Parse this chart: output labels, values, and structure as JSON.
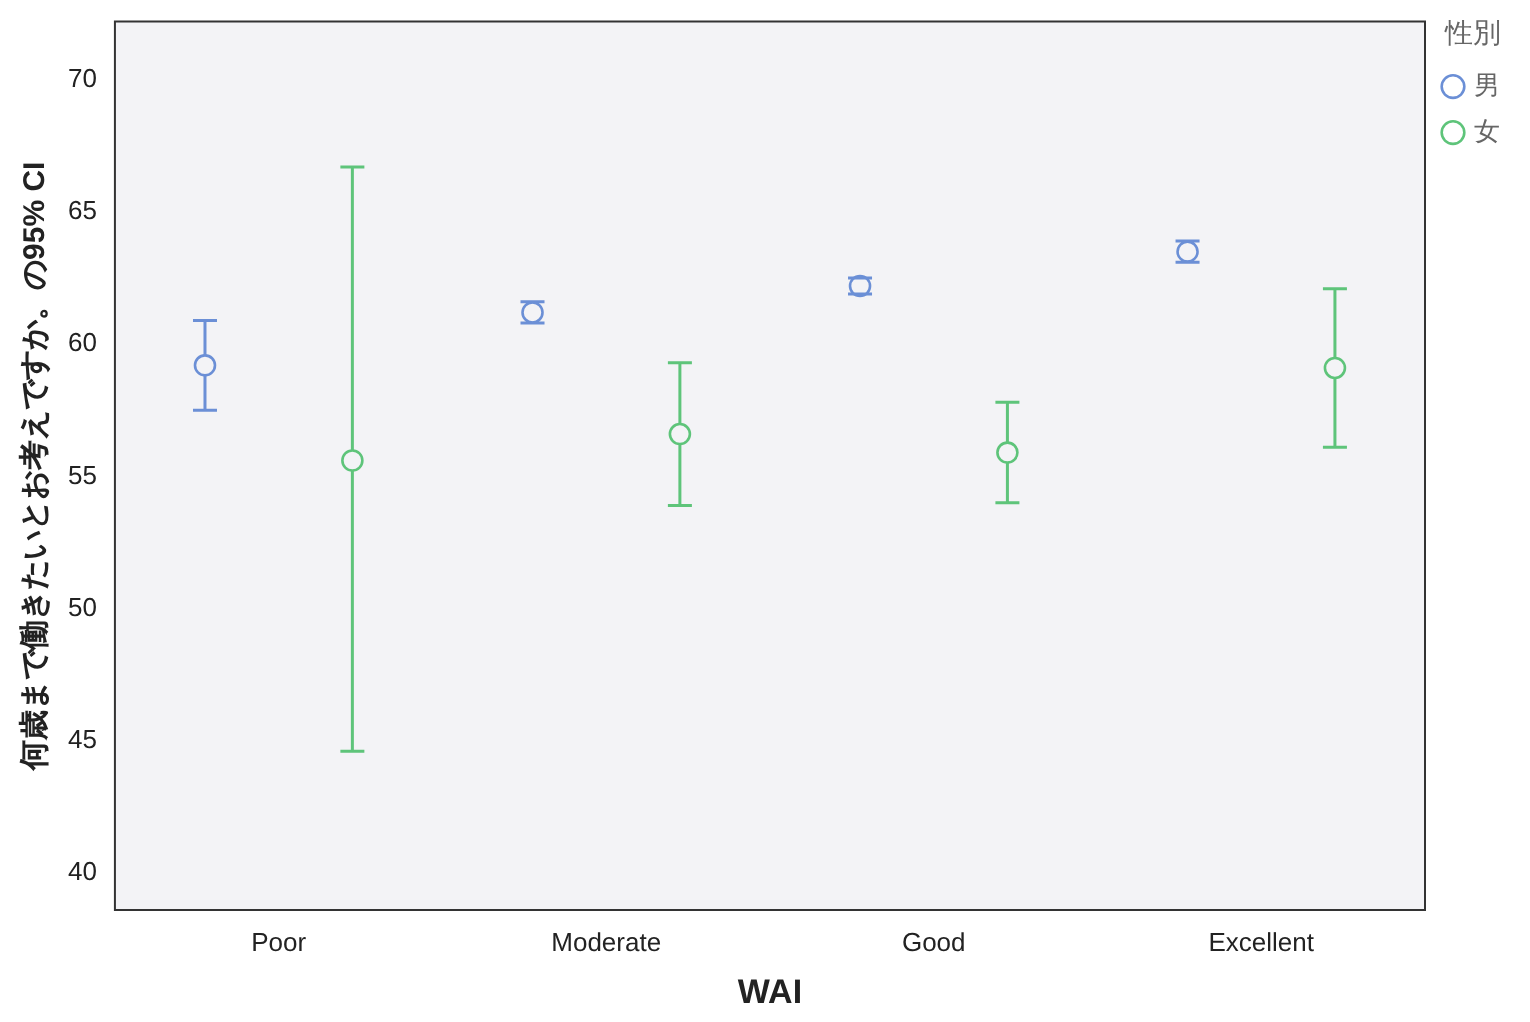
{
  "chart_data": {
    "type": "scatter",
    "xlabel": "WAI",
    "ylabel": "何歳まで働きたいとお考えですか。の95% CI",
    "legend_title": "性別",
    "categories": [
      "Poor",
      "Moderate",
      "Good",
      "Excellent"
    ],
    "series": [
      {
        "name": "男",
        "color": "#6b8fd6",
        "values": [
          59.2,
          61.2,
          62.2,
          63.5
        ],
        "errors": [
          [
            57.5,
            60.9
          ],
          [
            60.8,
            61.6
          ],
          [
            61.9,
            62.5
          ],
          [
            63.1,
            63.9
          ]
        ]
      },
      {
        "name": "女",
        "color": "#5ec47a",
        "values": [
          55.6,
          56.6,
          55.9,
          59.1
        ],
        "errors": [
          [
            44.6,
            66.7
          ],
          [
            53.9,
            59.3
          ],
          [
            54.0,
            57.8
          ],
          [
            56.1,
            62.1
          ]
        ]
      }
    ],
    "ylim": [
      38.6,
      72.2
    ],
    "yticks": [
      40,
      45,
      50,
      55,
      60,
      65,
      70
    ],
    "grid": false,
    "legend": "top right",
    "marker": "circle"
  }
}
